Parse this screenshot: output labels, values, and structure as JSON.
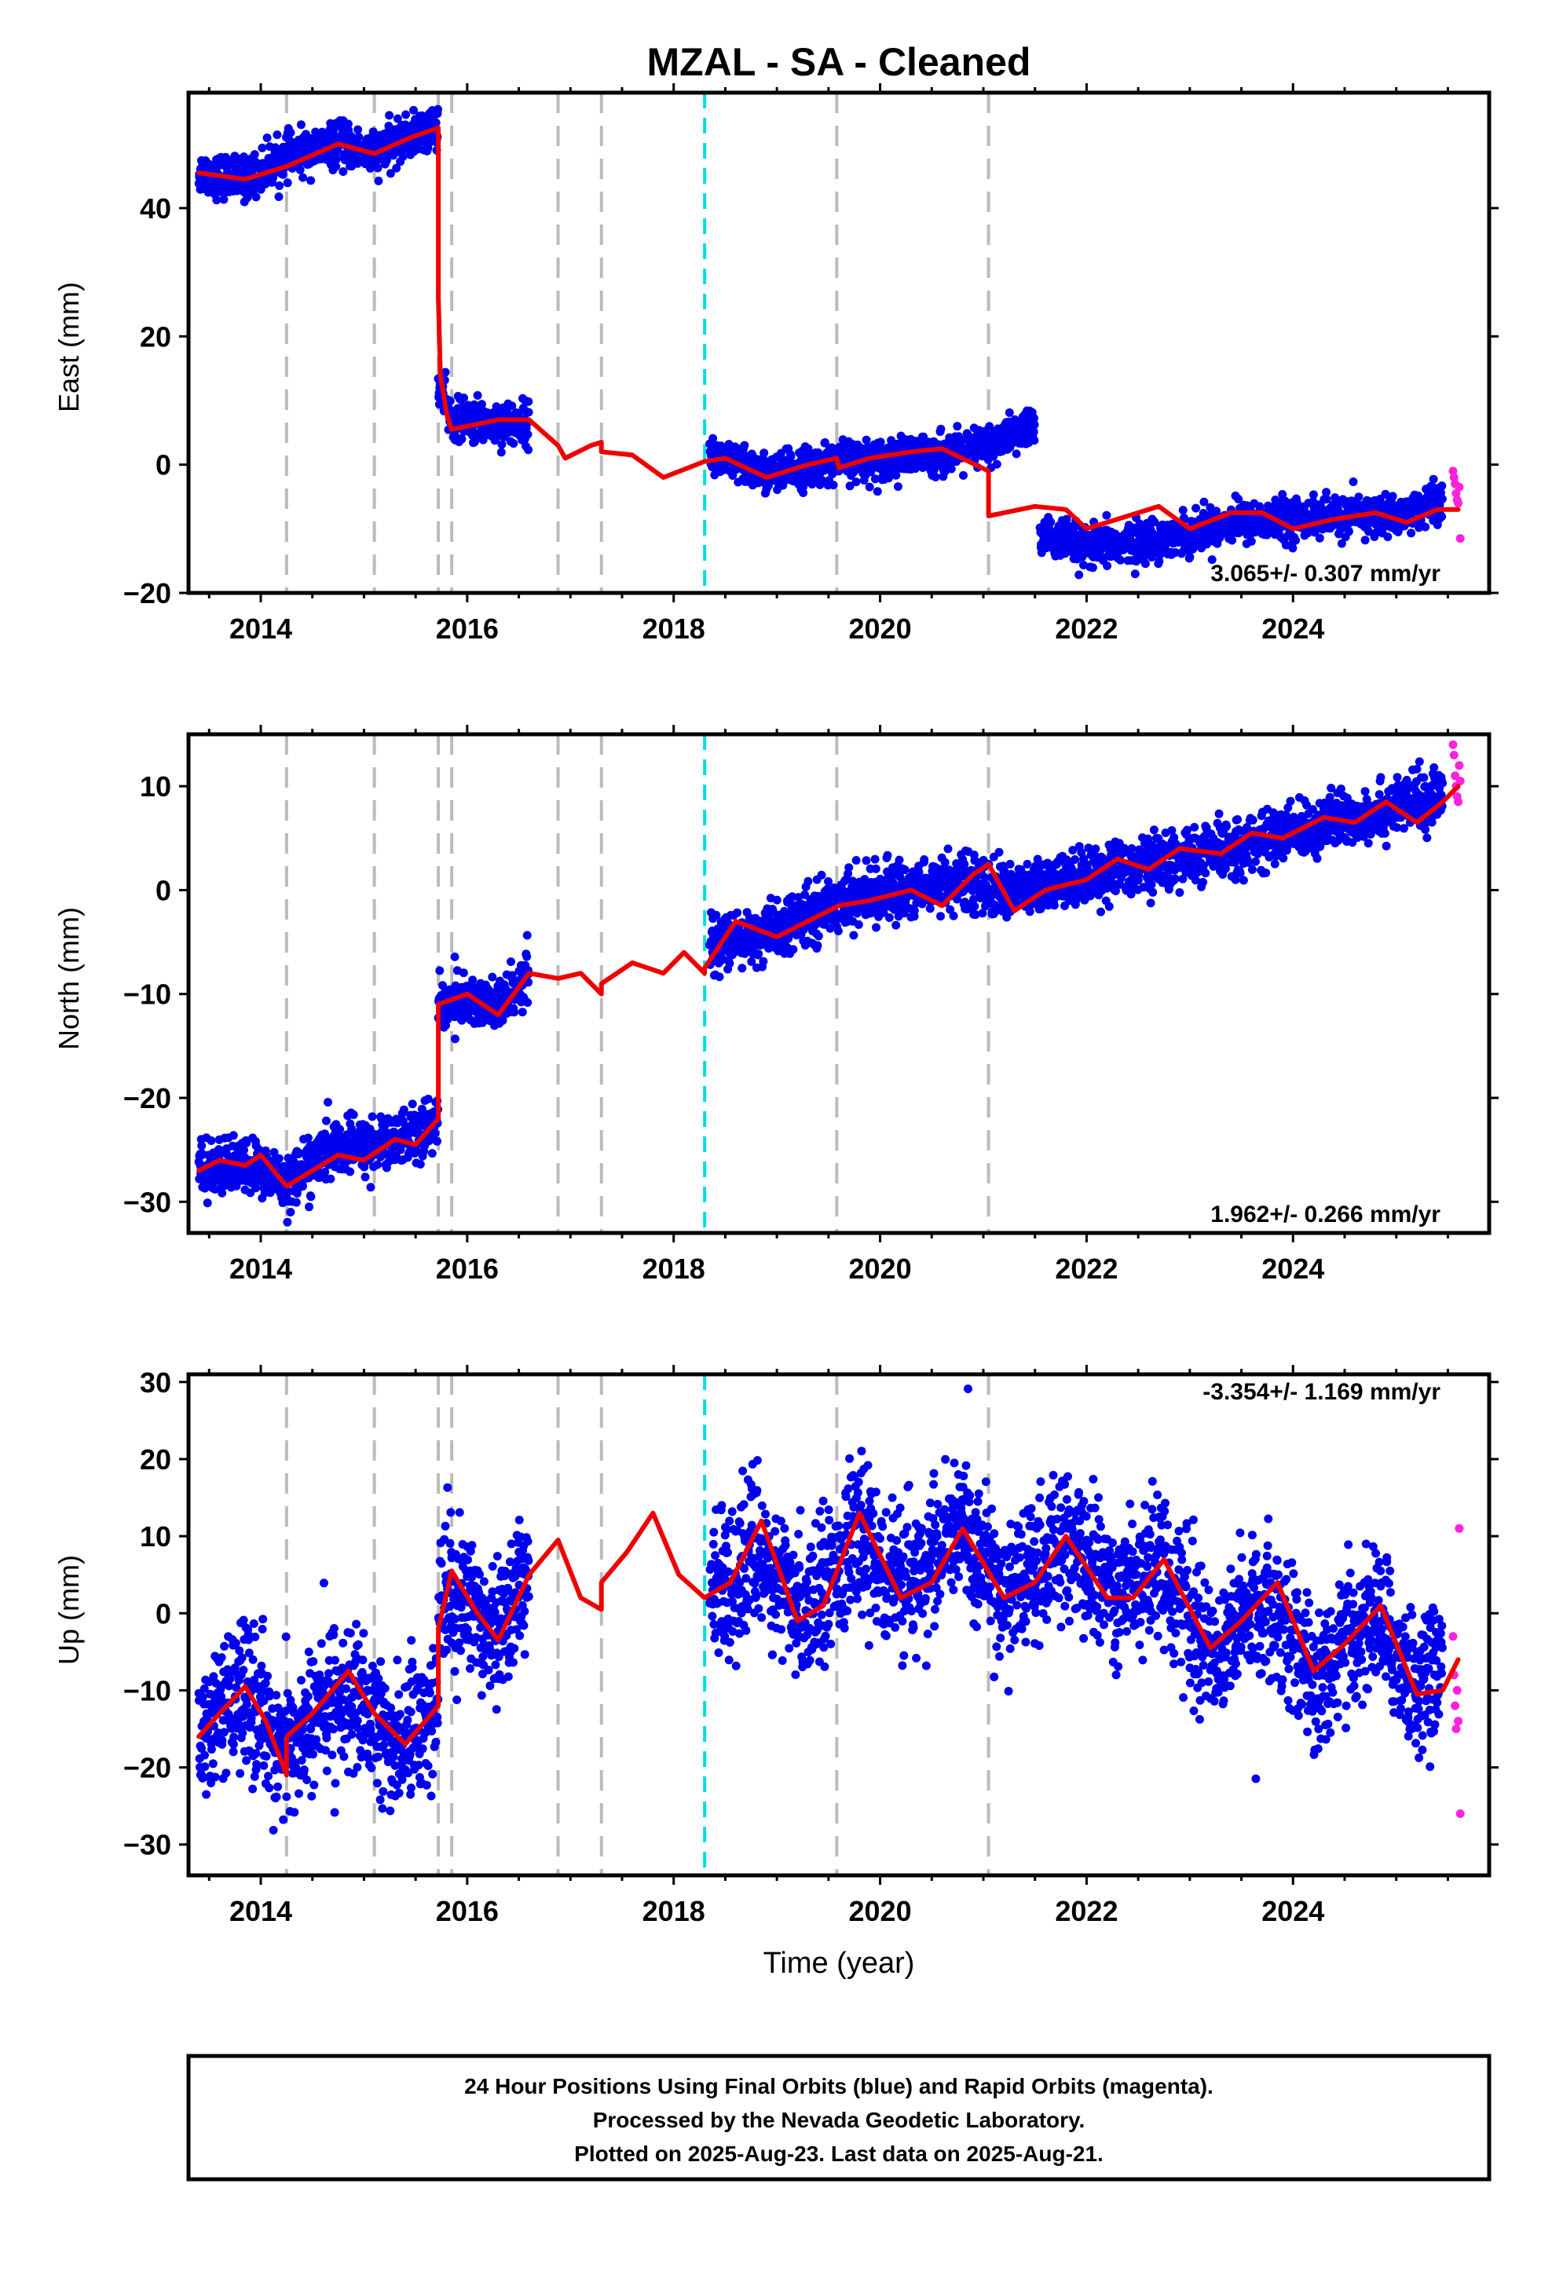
{
  "title": "MZAL  - SA - Cleaned",
  "xlabel": "Time (year)",
  "footer": {
    "line1": "24 Hour Positions Using Final Orbits (blue) and Rapid Orbits (magenta).",
    "line2": "Processed by the Nevada Geodetic Laboratory.",
    "line3": "Plotted on 2025-Aug-23. Last data on 2025-Aug-21."
  },
  "colors": {
    "final_orbits": "#0000ee",
    "rapid_orbits": "#ff22dd",
    "model": "#ee0000",
    "gray_steps": "#bbbbbb",
    "cyan_step": "#00dddd"
  },
  "chart_data": [
    {
      "type": "scatter",
      "panel": "east",
      "ylabel": "East (mm)",
      "xlim": [
        2013.3,
        2025.9
      ],
      "ylim": [
        -20,
        58
      ],
      "yticks": [
        -20,
        0,
        20,
        40
      ],
      "xticks": [
        2014,
        2016,
        2018,
        2020,
        2022,
        2024
      ],
      "rate_text": "3.065+/- 0.307 mm/yr",
      "step_lines_gray": [
        2014.25,
        2015.1,
        2015.72,
        2015.85,
        2016.88,
        2017.3,
        2019.58,
        2021.05
      ],
      "step_line_cyan": 2018.3,
      "data_segments": [
        {
          "x0": 2013.4,
          "x1": 2015.72,
          "anchors": [
            [
              2013.4,
              45.5
            ],
            [
              2013.85,
              44.5
            ],
            [
              2014.25,
              48
            ],
            [
              2014.75,
              50
            ],
            [
              2015.1,
              48.5
            ],
            [
              2015.72,
              53
            ]
          ],
          "scatter": 1.6
        },
        {
          "x0": 2015.72,
          "x1": 2016.6,
          "anchors": [
            [
              2015.72,
              12
            ],
            [
              2015.85,
              7
            ],
            [
              2016.3,
              6.5
            ],
            [
              2016.6,
              6.5
            ]
          ],
          "scatter": 1.6
        },
        {
          "x0": 2018.35,
          "x1": 2021.5,
          "anchors": [
            [
              2018.35,
              1.5
            ],
            [
              2018.9,
              -1.5
            ],
            [
              2019.58,
              0.5
            ],
            [
              2020.2,
              1
            ],
            [
              2020.8,
              2
            ],
            [
              2021.05,
              3
            ],
            [
              2021.5,
              6
            ]
          ],
          "scatter": 1.5
        },
        {
          "x0": 2021.55,
          "x1": 2025.45,
          "anchors": [
            [
              2021.55,
              -11
            ],
            [
              2022.0,
              -13
            ],
            [
              2022.5,
              -12
            ],
            [
              2022.9,
              -11
            ],
            [
              2023.4,
              -9
            ],
            [
              2024.0,
              -8.5
            ],
            [
              2024.6,
              -8
            ],
            [
              2025.0,
              -8
            ],
            [
              2025.45,
              -5.5
            ]
          ],
          "scatter": 1.5
        }
      ],
      "rapid_points": [
        [
          2025.55,
          -1
        ],
        [
          2025.56,
          -2
        ],
        [
          2025.57,
          -3
        ],
        [
          2025.58,
          -4.5
        ],
        [
          2025.59,
          -5.5
        ],
        [
          2025.6,
          -6
        ],
        [
          2025.61,
          -3.5
        ],
        [
          2025.62,
          -11.5
        ]
      ],
      "model": {
        "breaks": [
          2015.72,
          2016.88,
          2017.3,
          2018.3,
          2019.58,
          2021.05
        ],
        "knots": [
          [
            2013.4,
            45.5
          ],
          [
            2013.85,
            44.5
          ],
          [
            2014.25,
            46.5
          ],
          [
            2014.75,
            50
          ],
          [
            2015.1,
            48.5
          ],
          [
            2015.45,
            51
          ],
          [
            2015.72,
            52.5
          ],
          [
            2015.72,
            26
          ],
          [
            2015.74,
            14
          ],
          [
            2015.8,
            8
          ],
          [
            2015.85,
            5.5
          ],
          [
            2016.0,
            6
          ],
          [
            2016.3,
            7
          ],
          [
            2016.6,
            7
          ],
          [
            2016.88,
            3
          ],
          [
            2016.95,
            1
          ],
          [
            2017.2,
            3
          ],
          [
            2017.3,
            3.5
          ],
          [
            2017.3,
            2
          ],
          [
            2017.6,
            1.5
          ],
          [
            2017.9,
            -2
          ],
          [
            2018.3,
            0.5
          ],
          [
            2018.5,
            1
          ],
          [
            2018.9,
            -2
          ],
          [
            2019.3,
            0
          ],
          [
            2019.58,
            1
          ],
          [
            2019.6,
            -0.5
          ],
          [
            2019.9,
            1
          ],
          [
            2020.3,
            2
          ],
          [
            2020.6,
            2.5
          ],
          [
            2021.05,
            -1
          ],
          [
            2021.05,
            -8
          ],
          [
            2021.5,
            -6.5
          ],
          [
            2021.8,
            -7
          ],
          [
            2022.0,
            -10
          ],
          [
            2022.4,
            -8
          ],
          [
            2022.7,
            -6.5
          ],
          [
            2023.0,
            -10
          ],
          [
            2023.4,
            -7.5
          ],
          [
            2023.7,
            -7.5
          ],
          [
            2024.0,
            -10
          ],
          [
            2024.4,
            -8.5
          ],
          [
            2024.8,
            -7.5
          ],
          [
            2025.1,
            -9
          ],
          [
            2025.4,
            -7
          ],
          [
            2025.6,
            -7
          ]
        ]
      }
    },
    {
      "type": "scatter",
      "panel": "north",
      "ylabel": "North (mm)",
      "xlim": [
        2013.3,
        2025.9
      ],
      "ylim": [
        -33,
        15
      ],
      "yticks": [
        -30,
        -20,
        -10,
        0,
        10
      ],
      "xticks": [
        2014,
        2016,
        2018,
        2020,
        2022,
        2024
      ],
      "rate_text": "1.962+/- 0.266 mm/yr",
      "step_lines_gray": [
        2014.25,
        2015.1,
        2015.72,
        2015.85,
        2016.88,
        2017.3,
        2019.58,
        2021.05
      ],
      "step_line_cyan": 2018.3,
      "data_segments": [
        {
          "x0": 2013.4,
          "x1": 2015.72,
          "anchors": [
            [
              2013.4,
              -27
            ],
            [
              2013.85,
              -26.5
            ],
            [
              2014.25,
              -28
            ],
            [
              2014.7,
              -25
            ],
            [
              2015.1,
              -24.5
            ],
            [
              2015.72,
              -22.5
            ]
          ],
          "scatter": 1.3
        },
        {
          "x0": 2015.72,
          "x1": 2016.6,
          "anchors": [
            [
              2015.72,
              -11
            ],
            [
              2016.0,
              -10.5
            ],
            [
              2016.3,
              -11.5
            ],
            [
              2016.6,
              -8
            ]
          ],
          "scatter": 1.3
        },
        {
          "x0": 2018.35,
          "x1": 2025.45,
          "anchors": [
            [
              2018.35,
              -5.5
            ],
            [
              2019.0,
              -4
            ],
            [
              2019.6,
              -1
            ],
            [
              2020.2,
              0
            ],
            [
              2020.8,
              1
            ],
            [
              2021.1,
              0
            ],
            [
              2021.5,
              0
            ],
            [
              2022.0,
              1.5
            ],
            [
              2022.6,
              2.5
            ],
            [
              2023.2,
              3.5
            ],
            [
              2023.8,
              5
            ],
            [
              2024.4,
              6.5
            ],
            [
              2025.0,
              8
            ],
            [
              2025.45,
              9
            ]
          ],
          "scatter": 1.3
        }
      ],
      "rapid_points": [
        [
          2025.55,
          14
        ],
        [
          2025.56,
          13
        ],
        [
          2025.57,
          11
        ],
        [
          2025.58,
          10
        ],
        [
          2025.59,
          9
        ],
        [
          2025.6,
          8.5
        ],
        [
          2025.61,
          12
        ],
        [
          2025.62,
          10.5
        ]
      ],
      "model": {
        "breaks": [
          2014.25,
          2015.72,
          2016.88,
          2017.3,
          2018.3
        ],
        "knots": [
          [
            2013.4,
            -27
          ],
          [
            2013.6,
            -26
          ],
          [
            2013.85,
            -26.5
          ],
          [
            2014.0,
            -25.5
          ],
          [
            2014.25,
            -28.5
          ],
          [
            2014.5,
            -27
          ],
          [
            2014.75,
            -25.5
          ],
          [
            2015.0,
            -26
          ],
          [
            2015.3,
            -24
          ],
          [
            2015.5,
            -24.5
          ],
          [
            2015.72,
            -22
          ],
          [
            2015.72,
            -11
          ],
          [
            2016.0,
            -10
          ],
          [
            2016.3,
            -12
          ],
          [
            2016.6,
            -8
          ],
          [
            2016.88,
            -8.5
          ],
          [
            2017.1,
            -8
          ],
          [
            2017.3,
            -10
          ],
          [
            2017.3,
            -9
          ],
          [
            2017.6,
            -7
          ],
          [
            2017.9,
            -8
          ],
          [
            2018.1,
            -6
          ],
          [
            2018.3,
            -8
          ],
          [
            2018.3,
            -7.5
          ],
          [
            2018.6,
            -3
          ],
          [
            2019.0,
            -4.5
          ],
          [
            2019.3,
            -3
          ],
          [
            2019.6,
            -1.5
          ],
          [
            2019.9,
            -1
          ],
          [
            2020.3,
            0
          ],
          [
            2020.6,
            -1.5
          ],
          [
            2020.9,
            1.5
          ],
          [
            2021.05,
            2.5
          ],
          [
            2021.3,
            -2
          ],
          [
            2021.6,
            0
          ],
          [
            2022.0,
            1
          ],
          [
            2022.3,
            3
          ],
          [
            2022.6,
            2
          ],
          [
            2022.9,
            4
          ],
          [
            2023.3,
            3.5
          ],
          [
            2023.6,
            5.5
          ],
          [
            2023.9,
            5
          ],
          [
            2024.3,
            7
          ],
          [
            2024.6,
            6.5
          ],
          [
            2024.9,
            8.5
          ],
          [
            2025.2,
            6.5
          ],
          [
            2025.45,
            8.5
          ],
          [
            2025.6,
            10
          ]
        ]
      }
    },
    {
      "type": "scatter",
      "panel": "up",
      "ylabel": "Up (mm)",
      "xlim": [
        2013.3,
        2025.9
      ],
      "ylim": [
        -34,
        31
      ],
      "yticks": [
        -30,
        -20,
        -10,
        0,
        10,
        20,
        30
      ],
      "xticks": [
        2014,
        2016,
        2018,
        2020,
        2022,
        2024
      ],
      "rate_text": "-3.354+/- 1.169 mm/yr",
      "step_lines_gray": [
        2014.25,
        2015.1,
        2015.72,
        2015.85,
        2016.88,
        2017.3,
        2019.58,
        2021.05
      ],
      "step_line_cyan": 2018.3,
      "data_segments": [
        {
          "x0": 2013.4,
          "x1": 2015.72,
          "anchors": [
            [
              2013.4,
              -16
            ],
            [
              2013.85,
              -10
            ],
            [
              2014.25,
              -18
            ],
            [
              2014.75,
              -10
            ],
            [
              2015.3,
              -17
            ],
            [
              2015.72,
              -12
            ]
          ],
          "scatter": 4.5
        },
        {
          "x0": 2015.72,
          "x1": 2016.6,
          "anchors": [
            [
              2015.72,
              2
            ],
            [
              2016.0,
              2
            ],
            [
              2016.3,
              -2
            ],
            [
              2016.6,
              6
            ]
          ],
          "scatter": 4.5
        },
        {
          "x0": 2018.35,
          "x1": 2025.45,
          "anchors": [
            [
              2018.35,
              2
            ],
            [
              2018.8,
              8
            ],
            [
              2019.2,
              0
            ],
            [
              2019.8,
              10
            ],
            [
              2020.2,
              3
            ],
            [
              2020.8,
              11
            ],
            [
              2021.2,
              2
            ],
            [
              2021.8,
              9
            ],
            [
              2022.3,
              3
            ],
            [
              2022.7,
              7
            ],
            [
              2023.2,
              -5
            ],
            [
              2023.8,
              2
            ],
            [
              2024.2,
              -9
            ],
            [
              2024.8,
              0
            ],
            [
              2025.2,
              -10
            ],
            [
              2025.45,
              -6
            ]
          ],
          "scatter": 4.5
        }
      ],
      "rapid_points": [
        [
          2025.55,
          -3
        ],
        [
          2025.56,
          -8
        ],
        [
          2025.57,
          -12
        ],
        [
          2025.58,
          -15
        ],
        [
          2025.59,
          -10
        ],
        [
          2025.6,
          -14
        ],
        [
          2025.61,
          11
        ],
        [
          2025.62,
          -26
        ]
      ],
      "model": {
        "breaks": [
          2014.25,
          2015.72,
          2017.3
        ],
        "knots": [
          [
            2013.4,
            -16
          ],
          [
            2013.6,
            -13
          ],
          [
            2013.85,
            -9.5
          ],
          [
            2014.05,
            -14
          ],
          [
            2014.25,
            -21
          ],
          [
            2014.25,
            -16
          ],
          [
            2014.5,
            -13
          ],
          [
            2014.85,
            -7.5
          ],
          [
            2015.1,
            -13
          ],
          [
            2015.4,
            -17
          ],
          [
            2015.72,
            -12
          ],
          [
            2015.72,
            -2
          ],
          [
            2015.85,
            5.5
          ],
          [
            2016.1,
            0
          ],
          [
            2016.3,
            -3.5
          ],
          [
            2016.6,
            5
          ],
          [
            2016.88,
            9.5
          ],
          [
            2017.1,
            2
          ],
          [
            2017.3,
            0.5
          ],
          [
            2017.3,
            4
          ],
          [
            2017.55,
            8
          ],
          [
            2017.8,
            13
          ],
          [
            2018.05,
            5
          ],
          [
            2018.3,
            2
          ],
          [
            2018.55,
            4
          ],
          [
            2018.85,
            12
          ],
          [
            2019.2,
            -1
          ],
          [
            2019.45,
            1
          ],
          [
            2019.8,
            13
          ],
          [
            2020.2,
            2
          ],
          [
            2020.5,
            4
          ],
          [
            2020.8,
            11
          ],
          [
            2021.2,
            2
          ],
          [
            2021.5,
            4
          ],
          [
            2021.8,
            10
          ],
          [
            2022.2,
            2
          ],
          [
            2022.45,
            2
          ],
          [
            2022.75,
            7
          ],
          [
            2023.2,
            -4.5
          ],
          [
            2023.5,
            -1
          ],
          [
            2023.85,
            4
          ],
          [
            2024.2,
            -7.5
          ],
          [
            2024.5,
            -4
          ],
          [
            2024.85,
            1
          ],
          [
            2025.2,
            -10.5
          ],
          [
            2025.45,
            -10
          ],
          [
            2025.6,
            -6
          ]
        ]
      }
    }
  ]
}
